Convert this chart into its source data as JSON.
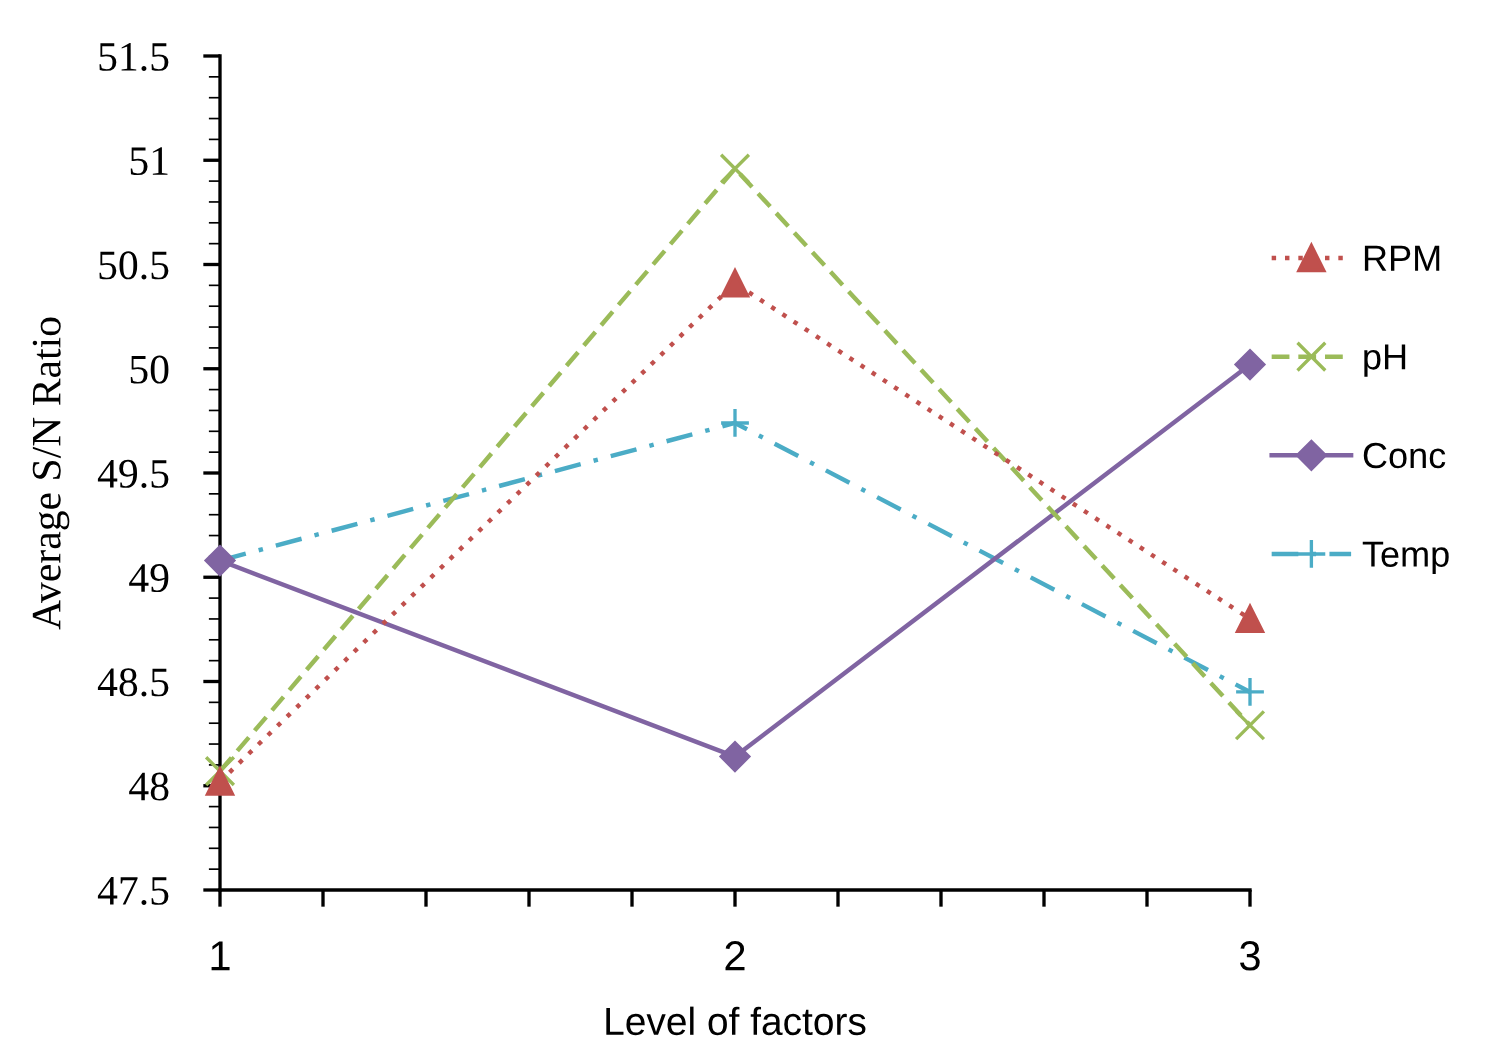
{
  "chart_data": {
    "type": "line",
    "xlabel": "Level of factors",
    "ylabel": "Average S/N Ratio",
    "x": [
      1,
      2,
      3
    ],
    "series": [
      {
        "name": "RPM",
        "color": "#c0504d",
        "values": [
          48.02,
          50.41,
          48.8
        ],
        "marker": "triangle",
        "line_style": "dotted"
      },
      {
        "name": "pH",
        "color": "#9bbb59",
        "values": [
          48.07,
          50.96,
          48.29
        ],
        "marker": "cross",
        "line_style": "dashed"
      },
      {
        "name": "Conc",
        "color": "#8064a2",
        "values": [
          49.08,
          48.14,
          50.02
        ],
        "marker": "diamond",
        "line_style": "solid"
      },
      {
        "name": "Temp",
        "color": "#4bacc6",
        "values": [
          49.08,
          49.74,
          48.45
        ],
        "marker": "plus",
        "line_style": "dashdot"
      }
    ],
    "xlim": [
      1,
      3
    ],
    "xticks": [
      1,
      {
        "value": 1.2,
        "label": null
      },
      {
        "value": 1.4,
        "label": null
      },
      {
        "value": 1.6,
        "label": null
      },
      {
        "value": 1.8,
        "label": null
      },
      2,
      {
        "value": 2.2,
        "label": null
      },
      {
        "value": 2.4,
        "label": null
      },
      {
        "value": 2.6,
        "label": null
      },
      {
        "value": 2.8,
        "label": null
      },
      3
    ],
    "ylim": [
      47.5,
      51.5
    ],
    "yticks": [
      47.5,
      48,
      48.5,
      49,
      49.5,
      50,
      50.5,
      51,
      51.5
    ],
    "grid": false,
    "legend": "right"
  }
}
